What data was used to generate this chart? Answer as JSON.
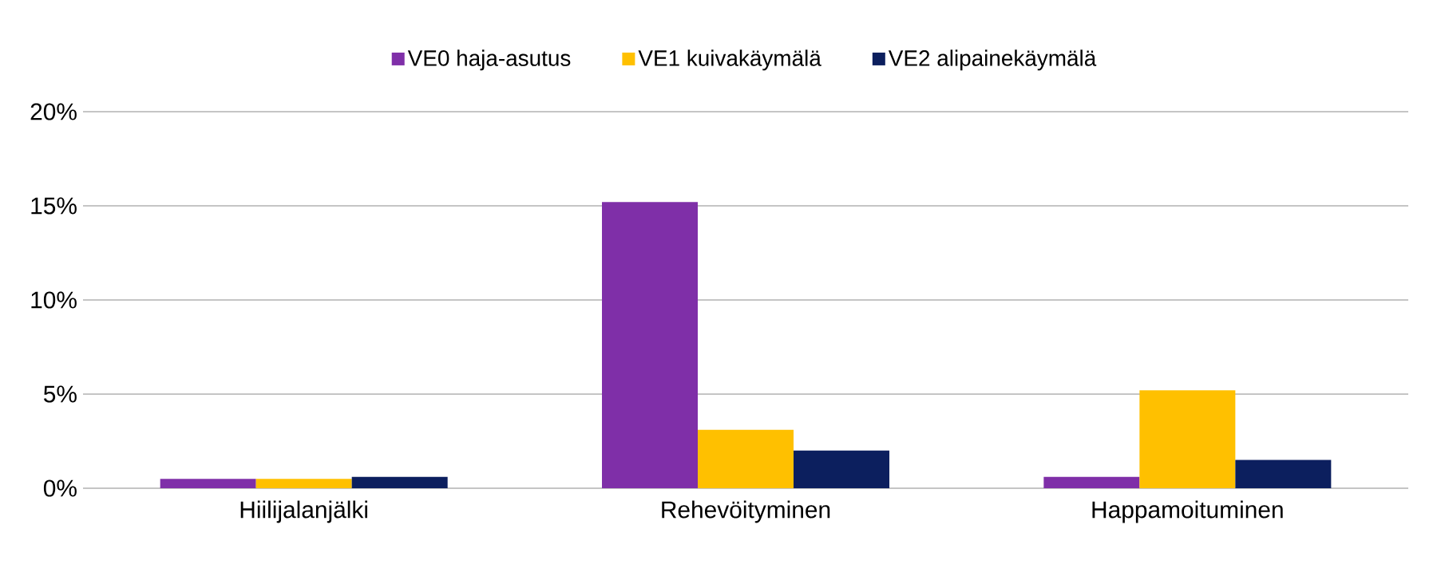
{
  "chart_data": {
    "type": "bar",
    "categories": [
      "Hiilijalanjälki",
      "Rehevöityminen",
      "Happamoituminen"
    ],
    "series": [
      {
        "name": "VE0 haja-asutus",
        "color": "#7f2fa8",
        "values": [
          0.5,
          15.2,
          0.6
        ]
      },
      {
        "name": "VE1 kuivakäymälä",
        "color": "#ffc000",
        "values": [
          0.5,
          3.1,
          5.2
        ]
      },
      {
        "name": "VE2 alipainekäymälä",
        "color": "#0c1f5e",
        "values": [
          0.6,
          2.0,
          1.5
        ]
      }
    ],
    "ylim": [
      0,
      20
    ],
    "yticks": [
      {
        "value": 0,
        "label": "0%"
      },
      {
        "value": 5,
        "label": "5%"
      },
      {
        "value": 10,
        "label": "10%"
      },
      {
        "value": 15,
        "label": "15%"
      },
      {
        "value": 20,
        "label": "20%"
      }
    ],
    "grid": "y",
    "legend": "top"
  }
}
